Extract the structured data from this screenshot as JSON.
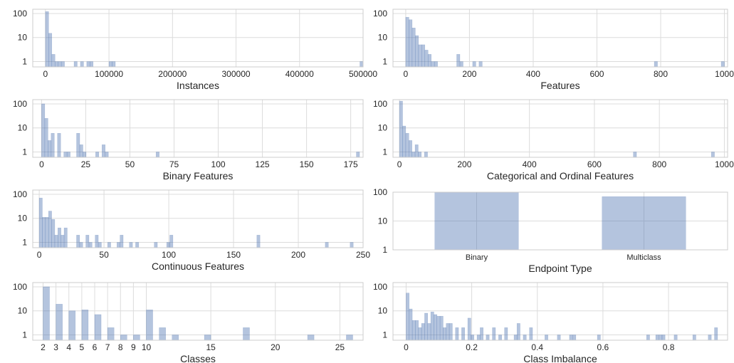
{
  "chart_data": [
    {
      "id": "instances",
      "type": "bar",
      "xlabel": "Instances",
      "xticks": [
        0,
        100000,
        200000,
        300000,
        400000,
        500000
      ],
      "xlim": [
        -20000,
        500000
      ],
      "ylog": true,
      "yticks": [
        1,
        10,
        100
      ],
      "ylim": [
        0.6,
        150
      ],
      "bin_width": 5000,
      "bins": [
        [
          0,
          120
        ],
        [
          5000,
          15
        ],
        [
          10000,
          2
        ],
        [
          15000,
          1
        ],
        [
          20000,
          1
        ],
        [
          25000,
          1
        ],
        [
          45000,
          1
        ],
        [
          55000,
          1
        ],
        [
          65000,
          1
        ],
        [
          70000,
          1
        ],
        [
          100000,
          1
        ],
        [
          105000,
          1
        ],
        [
          495000,
          1
        ]
      ]
    },
    {
      "id": "features",
      "type": "bar",
      "xlabel": "Features",
      "xticks": [
        0,
        200,
        400,
        600,
        800,
        1000
      ],
      "xlim": [
        -40,
        1010
      ],
      "ylog": true,
      "yticks": [
        1,
        10,
        100
      ],
      "ylim": [
        0.6,
        150
      ],
      "bin_width": 10,
      "bins": [
        [
          0,
          70
        ],
        [
          10,
          55
        ],
        [
          20,
          25
        ],
        [
          30,
          12
        ],
        [
          40,
          5
        ],
        [
          50,
          5
        ],
        [
          60,
          3
        ],
        [
          70,
          2
        ],
        [
          80,
          1
        ],
        [
          90,
          1
        ],
        [
          160,
          2
        ],
        [
          170,
          1
        ],
        [
          210,
          1
        ],
        [
          230,
          1
        ],
        [
          780,
          1
        ],
        [
          990,
          1
        ]
      ]
    },
    {
      "id": "binary-features",
      "type": "bar",
      "xlabel": "Binary Features",
      "xticks": [
        0,
        25,
        50,
        75,
        100,
        125,
        150,
        175
      ],
      "xlim": [
        -5,
        182
      ],
      "ylog": true,
      "yticks": [
        1,
        10,
        100
      ],
      "ylim": [
        0.6,
        150
      ],
      "bin_width": 1.8,
      "bins": [
        [
          0,
          100
        ],
        [
          1.8,
          25
        ],
        [
          3.6,
          3
        ],
        [
          5.4,
          6
        ],
        [
          9,
          6
        ],
        [
          12.6,
          1
        ],
        [
          14.4,
          1
        ],
        [
          19.8,
          6
        ],
        [
          21.6,
          2
        ],
        [
          23.4,
          1
        ],
        [
          30.6,
          1
        ],
        [
          34.2,
          2
        ],
        [
          36,
          1
        ],
        [
          64.8,
          1
        ],
        [
          178.2,
          1
        ]
      ]
    },
    {
      "id": "categorical-ordinal-features",
      "type": "bar",
      "xlabel": "Categorical and Ordinal Features",
      "xticks": [
        0,
        200,
        400,
        600,
        800,
        1000
      ],
      "xlim": [
        -20,
        1010
      ],
      "ylog": true,
      "yticks": [
        1,
        10,
        100
      ],
      "ylim": [
        0.6,
        150
      ],
      "bin_width": 9.6,
      "bins": [
        [
          0,
          130
        ],
        [
          9.6,
          12
        ],
        [
          19.2,
          6
        ],
        [
          28.8,
          3
        ],
        [
          38.4,
          1
        ],
        [
          48,
          2
        ],
        [
          57.6,
          1
        ],
        [
          76.8,
          1
        ],
        [
          720,
          1
        ],
        [
          960,
          1
        ]
      ]
    },
    {
      "id": "continuous-features",
      "type": "bar",
      "xlabel": "Continuous Features",
      "xticks": [
        0,
        50,
        100,
        150,
        200,
        250
      ],
      "xlim": [
        -5,
        250
      ],
      "ylog": true,
      "yticks": [
        1,
        10,
        100
      ],
      "ylim": [
        0.6,
        150
      ],
      "bin_width": 2.4,
      "bins": [
        [
          0,
          70
        ],
        [
          2.4,
          11
        ],
        [
          4.8,
          11
        ],
        [
          7.2,
          20
        ],
        [
          9.6,
          9
        ],
        [
          12,
          2
        ],
        [
          14.4,
          4
        ],
        [
          16.8,
          2
        ],
        [
          19.2,
          4
        ],
        [
          28.8,
          2
        ],
        [
          31.2,
          1
        ],
        [
          36,
          2
        ],
        [
          38.4,
          1
        ],
        [
          43.2,
          2
        ],
        [
          45.6,
          1
        ],
        [
          52.8,
          1
        ],
        [
          60,
          1
        ],
        [
          62.4,
          2
        ],
        [
          69.6,
          1
        ],
        [
          74.4,
          1
        ],
        [
          88.8,
          1
        ],
        [
          98.4,
          1
        ],
        [
          100.8,
          2
        ],
        [
          168,
          2
        ],
        [
          220.8,
          1
        ],
        [
          240,
          1
        ]
      ]
    },
    {
      "id": "endpoint-type",
      "type": "bar",
      "xlabel": "Endpoint Type",
      "categories": [
        "Binary",
        "Multiclass"
      ],
      "values": [
        100,
        70
      ],
      "ylog": true,
      "yticks": [
        1,
        10,
        100
      ],
      "ylim": [
        1,
        100
      ]
    },
    {
      "id": "classes",
      "type": "bar",
      "xlabel": "Classes",
      "xticks": [
        2,
        3,
        4,
        5,
        6,
        7,
        8,
        9,
        10,
        15,
        20,
        25
      ],
      "xlim": [
        1.2,
        26.8
      ],
      "ylog": true,
      "yticks": [
        1,
        10,
        100
      ],
      "ylim": [
        0.6,
        150
      ],
      "bin_width": 0.5,
      "bins": [
        [
          2,
          100
        ],
        [
          3,
          19
        ],
        [
          4,
          10
        ],
        [
          5,
          11
        ],
        [
          6,
          7
        ],
        [
          7,
          2
        ],
        [
          8,
          1
        ],
        [
          9,
          1
        ],
        [
          10,
          11
        ],
        [
          11,
          2
        ],
        [
          12,
          1
        ],
        [
          14.5,
          1
        ],
        [
          17.5,
          2
        ],
        [
          22.5,
          1
        ],
        [
          25.5,
          1
        ]
      ]
    },
    {
      "id": "class-imbalance",
      "type": "bar",
      "xlabel": "Class Imbalance",
      "xticks": [
        0.0,
        0.2,
        0.4,
        0.6,
        0.8
      ],
      "xlim": [
        -0.04,
        0.98
      ],
      "ylog": true,
      "yticks": [
        1,
        10,
        100
      ],
      "ylim": [
        0.6,
        150
      ],
      "bin_width": 0.0094,
      "bins": [
        [
          0,
          55
        ],
        [
          0.0094,
          12
        ],
        [
          0.0188,
          4
        ],
        [
          0.0282,
          4
        ],
        [
          0.0376,
          2
        ],
        [
          0.047,
          3
        ],
        [
          0.0564,
          8
        ],
        [
          0.0658,
          3
        ],
        [
          0.0752,
          9
        ],
        [
          0.0846,
          7
        ],
        [
          0.094,
          6
        ],
        [
          0.1034,
          6
        ],
        [
          0.1128,
          2
        ],
        [
          0.1222,
          3
        ],
        [
          0.1316,
          3
        ],
        [
          0.1504,
          2
        ],
        [
          0.1692,
          2
        ],
        [
          0.188,
          5
        ],
        [
          0.1974,
          1
        ],
        [
          0.2162,
          1
        ],
        [
          0.2256,
          2
        ],
        [
          0.244,
          1
        ],
        [
          0.263,
          2
        ],
        [
          0.282,
          1
        ],
        [
          0.3,
          2
        ],
        [
          0.329,
          1
        ],
        [
          0.338,
          3
        ],
        [
          0.357,
          1
        ],
        [
          0.376,
          2
        ],
        [
          0.423,
          1
        ],
        [
          0.461,
          1
        ],
        [
          0.498,
          1
        ],
        [
          0.508,
          1
        ],
        [
          0.583,
          1
        ],
        [
          0.733,
          1
        ],
        [
          0.761,
          1
        ],
        [
          0.771,
          1
        ],
        [
          0.78,
          1
        ],
        [
          0.817,
          1
        ],
        [
          0.874,
          1
        ],
        [
          0.921,
          1
        ],
        [
          0.94,
          2
        ]
      ]
    }
  ]
}
